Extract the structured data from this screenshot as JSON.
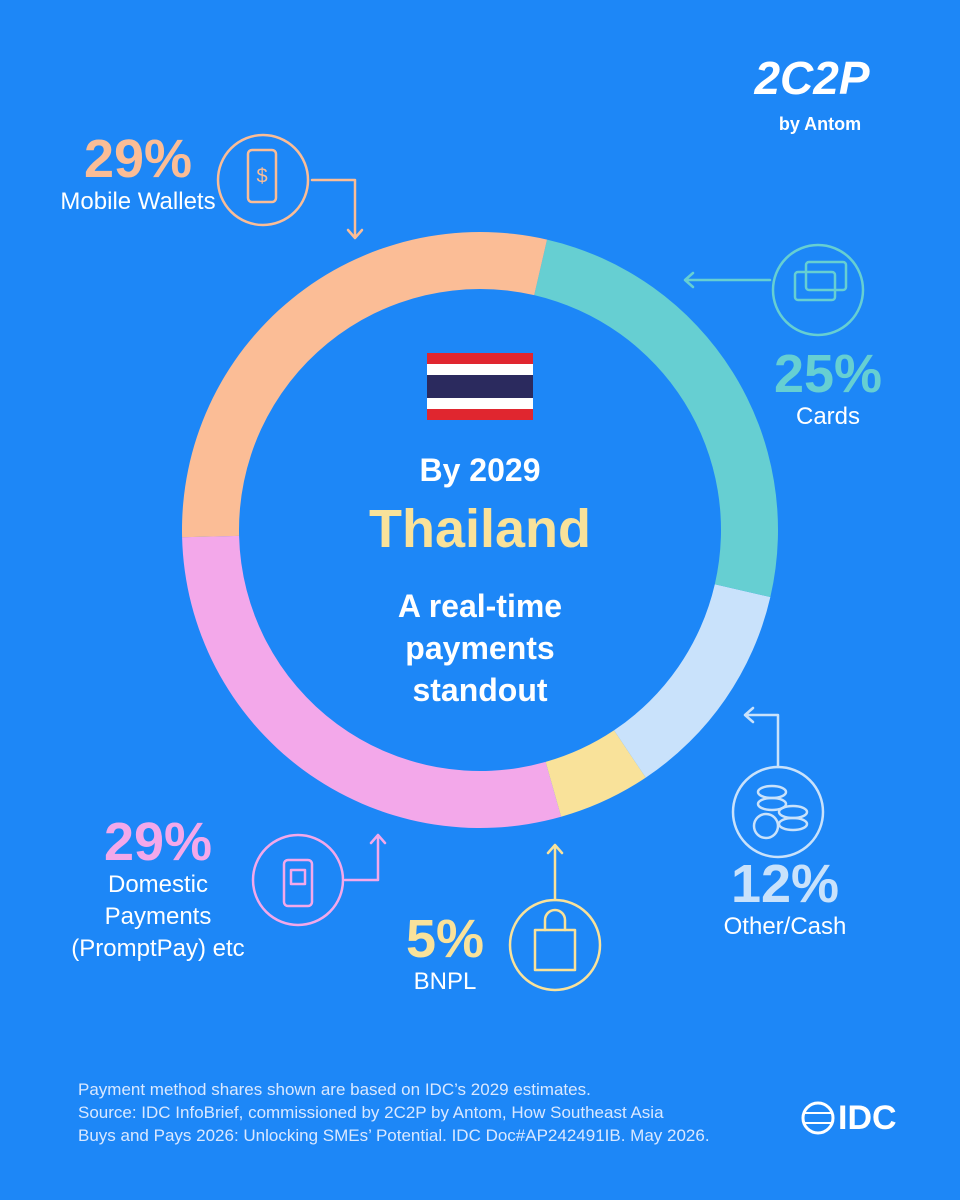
{
  "chart_data": {
    "type": "donut",
    "categories": [
      "Mobile Wallets",
      "Cards",
      "Other/Cash",
      "BNPL",
      "Domestic Payments (PromptPay) etc"
    ],
    "values": [
      29,
      25,
      12,
      5,
      29
    ],
    "value_labels": [
      "29%",
      "25%",
      "12%",
      "5%",
      "29%"
    ],
    "colors": [
      "#fbbd96",
      "#66cfd2",
      "#c9e2fb",
      "#f9e29a",
      "#f3a8ea"
    ],
    "center": {
      "subtitle": "By 2029",
      "title": "Thailand",
      "tagline": "A real-time payments standout"
    }
  },
  "brand": {
    "logo": "2C2P",
    "byline": "by Antom",
    "source_logo": "IDC"
  },
  "footnote": [
    "Payment method shares shown are based on IDC’s 2029 estimates.",
    "Source: IDC InfoBrief, commissioned by 2C2P by Antom, How Southeast Asia",
    "Buys and Pays 2026: Unlocking SMEs’ Potential. IDC Doc#AP242491IB. May 2026."
  ]
}
